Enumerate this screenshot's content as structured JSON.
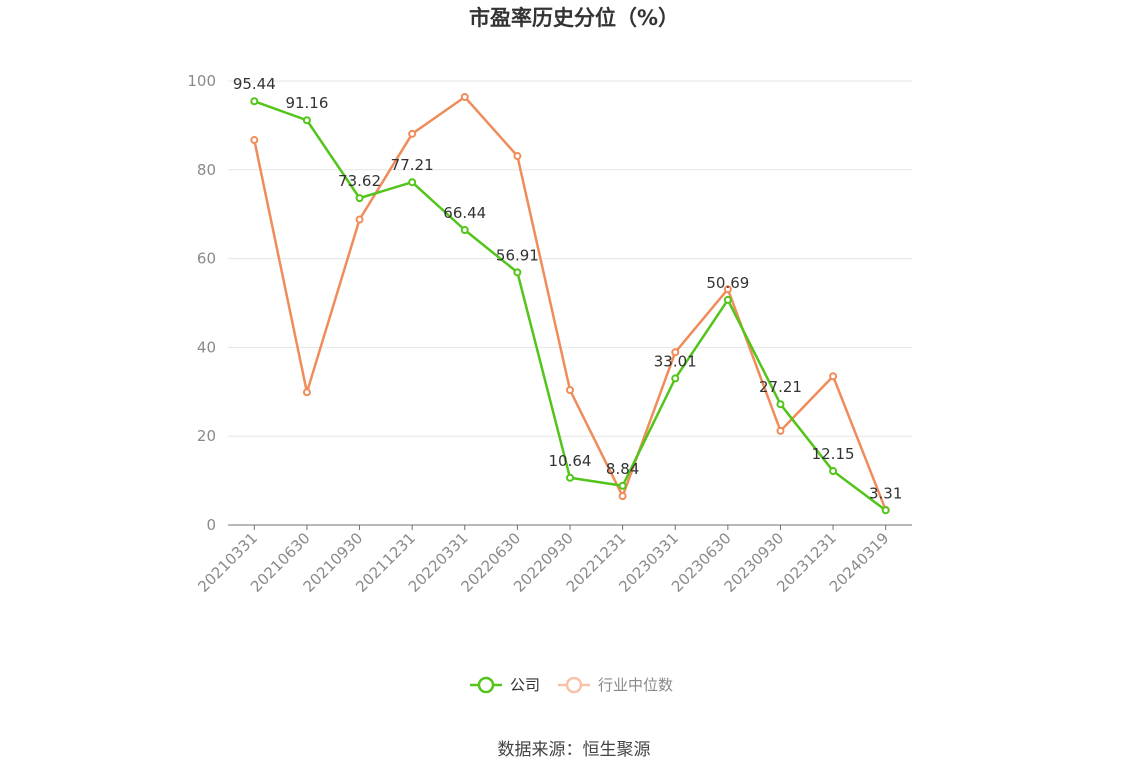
{
  "chart_data": {
    "type": "line",
    "title": "市盈率历史分位（%）",
    "categories": [
      "20210331",
      "20210630",
      "20210930",
      "20211231",
      "20220331",
      "20220630",
      "20220930",
      "20221231",
      "20230331",
      "20230630",
      "20230930",
      "20231231",
      "20240319"
    ],
    "ylim": [
      0,
      100
    ],
    "yticks": [
      0,
      20,
      40,
      60,
      80,
      100
    ],
    "grid": true,
    "legend_position": "bottom",
    "series": [
      {
        "name": "公司",
        "color": "#52c41a",
        "values": [
          95.44,
          91.16,
          73.62,
          77.21,
          66.44,
          56.91,
          10.64,
          8.84,
          33.01,
          50.69,
          27.21,
          12.15,
          3.31
        ],
        "labels": [
          "95.44",
          "91.16",
          "73.62",
          "77.21",
          "66.44",
          "56.91",
          "10.64",
          "8.84",
          "33.01",
          "50.69",
          "27.21",
          "12.15",
          "3.31"
        ]
      },
      {
        "name": "行业中位数",
        "color": "#f08c5a",
        "values": [
          86.7,
          29.9,
          68.8,
          88.1,
          96.4,
          83.1,
          30.4,
          6.5,
          38.9,
          53.1,
          21.2,
          33.5,
          3.4
        ]
      }
    ],
    "source": "数据来源：恒生聚源"
  }
}
